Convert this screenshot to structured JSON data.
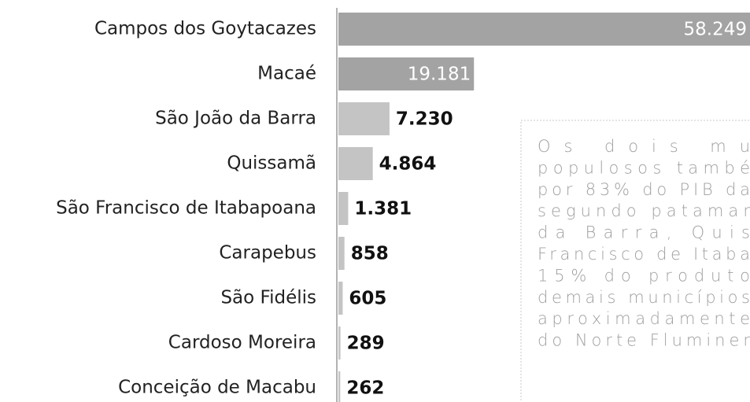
{
  "chart_data": {
    "type": "barh",
    "categories": [
      "Campos dos Goytacazes",
      "Macaé",
      "São João da Barra",
      "Quissamã",
      "São Francisco de Itabapoana",
      "Carapebus",
      "São Fidélis",
      "Cardoso Moreira",
      "Conceição de Macabu"
    ],
    "values": [
      58249,
      19181,
      7230,
      4864,
      1381,
      858,
      605,
      289,
      262
    ],
    "value_labels": [
      "58.249",
      "19.181",
      "7.230",
      "4.864",
      "1.381",
      "858",
      "605",
      "289",
      "262"
    ],
    "colors": [
      "#a3a3a3",
      "#a3a3a3",
      "#c4c4c4",
      "#c4c4c4",
      "#c4c4c4",
      "#c4c4c4",
      "#c4c4c4",
      "#c4c4c4",
      "#c4c4c4"
    ],
    "annotation": [
      "Os dois mu",
      "populosos també",
      "por 83% do PIB da",
      "segundo patamar",
      "da Barra, Quis",
      "Francisco de Itaba",
      "15% do produto",
      "demais municípios",
      "aproximadamente",
      "do Norte Fluminer"
    ]
  }
}
